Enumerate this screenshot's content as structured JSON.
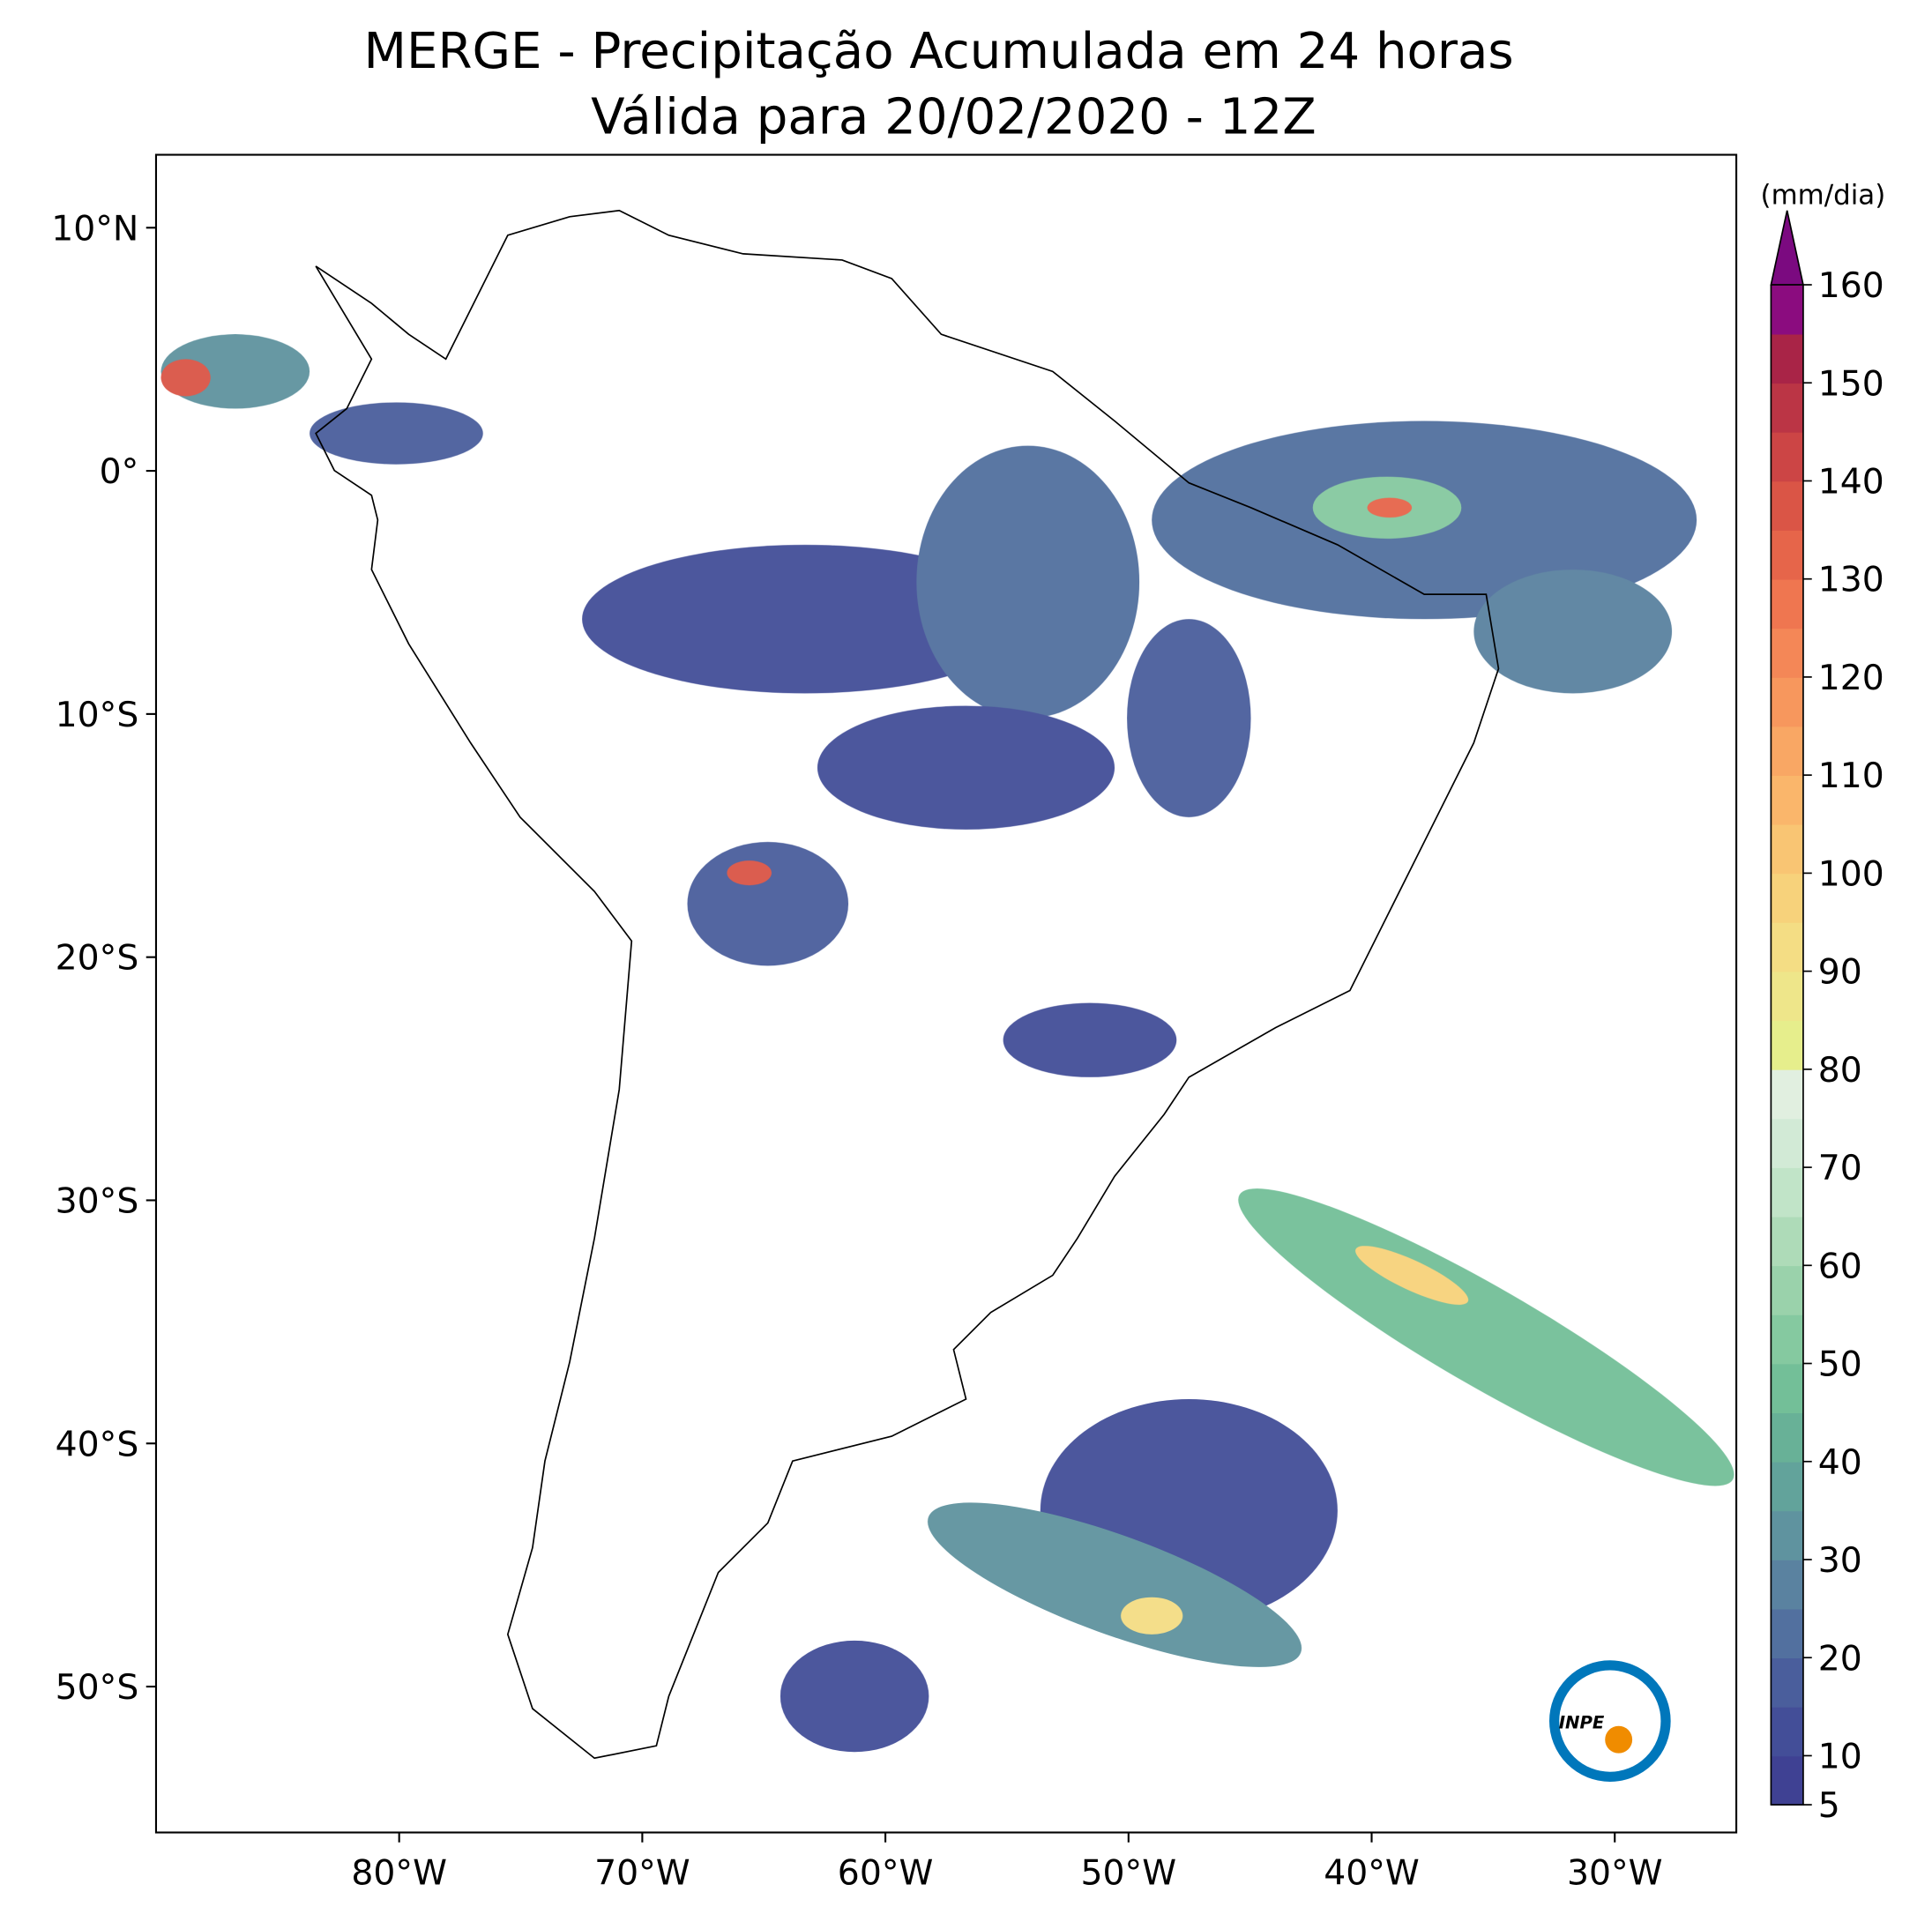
{
  "map": {
    "title": [
      "MERGE - Precipitação Acumulada em 24 horas",
      "Válida para 20/02/2020 - 12Z"
    ],
    "xlim": [
      -90,
      -25
    ],
    "ylim": [
      -56,
      13
    ],
    "xticks": [
      {
        "value": -80,
        "label": "80°W"
      },
      {
        "value": -70,
        "label": "70°W"
      },
      {
        "value": -60,
        "label": "60°W"
      },
      {
        "value": -50,
        "label": "50°W"
      },
      {
        "value": -40,
        "label": "40°W"
      },
      {
        "value": -30,
        "label": "30°W"
      }
    ],
    "yticks": [
      {
        "value": 10,
        "label": "10°N"
      },
      {
        "value": 0,
        "label": "0°"
      },
      {
        "value": -10,
        "label": "10°S"
      },
      {
        "value": -20,
        "label": "20°S"
      },
      {
        "value": -30,
        "label": "30°S"
      },
      {
        "value": -40,
        "label": "40°S"
      },
      {
        "value": -50,
        "label": "50°S"
      }
    ],
    "colorbar": {
      "label": "(mm/dia)",
      "lim": [
        5,
        160
      ],
      "ticks": [
        5,
        10,
        20,
        30,
        40,
        50,
        60,
        70,
        80,
        90,
        100,
        110,
        120,
        130,
        140,
        150,
        160
      ],
      "colors": [
        "#3f4193",
        "#434e98",
        "#4a5e9c",
        "#52709f",
        "#5a82a0",
        "#5f939f",
        "#62a39b",
        "#68b197",
        "#73bf98",
        "#85c9a0",
        "#9ad2ab",
        "#aedbb8",
        "#c1e4c8",
        "#d2ead6",
        "#e1efe0",
        "#e6ee8c",
        "#eee68a",
        "#f4dd84",
        "#f7d27b",
        "#f9c573",
        "#fab66b",
        "#f9a764",
        "#f7975d",
        "#f48757",
        "#ef7650",
        "#e6654a",
        "#da5546",
        "#cc4545",
        "#bb3545",
        "#a92447",
        "#8b0c7f"
      ],
      "extend_color": "#7b0a80"
    },
    "logo": "INPE"
  }
}
